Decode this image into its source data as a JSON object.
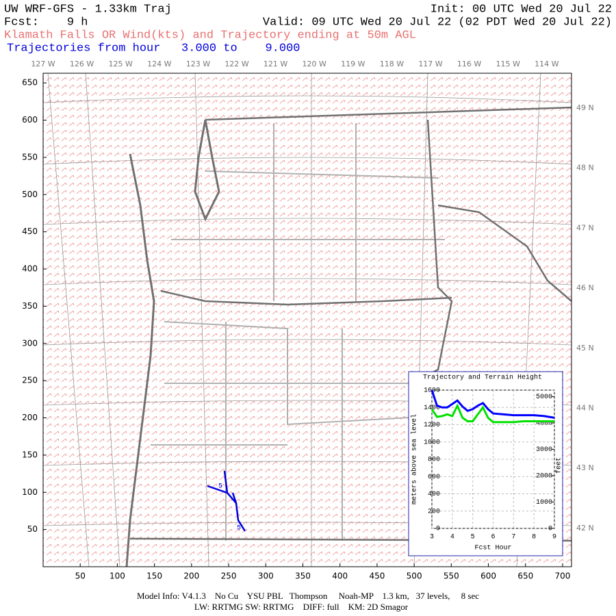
{
  "header": {
    "title": "UW WRF-GFS - 1.33km Traj",
    "init": "Init: 00 UTC Wed 20 Jul 22",
    "fcst": "Fcst:    9 h",
    "valid": "Valid: 09 UTC Wed 20 Jul 22 (02 PDT Wed 20 Jul 22)",
    "subtitle": "Klamath Falls OR Wind(kts) and Trajectory ending at 50m AGL",
    "range": "Trajectories from hour   3.000 to    9.000"
  },
  "map": {
    "xlim": [
      0,
      712
    ],
    "ylim": [
      0,
      663
    ],
    "xticks": [
      50,
      100,
      150,
      200,
      250,
      300,
      350,
      400,
      450,
      500,
      550,
      600,
      650,
      700
    ],
    "yticks": [
      50,
      100,
      150,
      200,
      250,
      300,
      350,
      400,
      450,
      500,
      550,
      600,
      650
    ],
    "lon_labels": [
      "127 W",
      "126 W",
      "125 W",
      "124 W",
      "123 W",
      "122 W",
      "121 W",
      "120 W",
      "119 W",
      "118 W",
      "117 W",
      "116 W",
      "115 W",
      "114 W"
    ],
    "lat_labels": [
      "49 N",
      "48 N",
      "47 N",
      "46 N",
      "45 N",
      "44 N",
      "43 N",
      "42 N"
    ],
    "trajectory_labels": [
      "5",
      "5"
    ]
  },
  "chart_data": {
    "type": "line",
    "title": "Trajectory and Terrain Height",
    "x_label": "Fcst Hour",
    "y_label": "meters above sea level",
    "y2_label": "feet",
    "x": [
      3,
      3.25,
      3.5,
      3.75,
      4,
      4.25,
      4.5,
      4.75,
      5,
      5.25,
      5.5,
      5.75,
      6,
      6.5,
      7,
      7.5,
      8,
      8.5,
      9
    ],
    "xlim": [
      3,
      9
    ],
    "xticks": [
      3,
      4,
      5,
      6,
      7,
      8,
      9
    ],
    "ylim": [
      0,
      1600
    ],
    "yticks": [
      0,
      200,
      400,
      600,
      800,
      1000,
      1200,
      1400,
      1600
    ],
    "y2lim": [
      0,
      5249
    ],
    "y2ticks": [
      0,
      1000,
      2000,
      3000,
      4000,
      5000
    ],
    "grid": true,
    "series": [
      {
        "name": "Trajectory",
        "color": "#0000ff",
        "values": [
          1600,
          1420,
          1400,
          1400,
          1440,
          1480,
          1410,
          1360,
          1380,
          1420,
          1450,
          1380,
          1330,
          1320,
          1310,
          1310,
          1310,
          1300,
          1280
        ]
      },
      {
        "name": "Terrain",
        "color": "#00e000",
        "values": [
          1380,
          1290,
          1300,
          1320,
          1300,
          1420,
          1280,
          1240,
          1240,
          1320,
          1400,
          1280,
          1230,
          1230,
          1230,
          1240,
          1240,
          1240,
          1240
        ]
      }
    ]
  },
  "footer": {
    "line1": "Model Info: V4.1.3    No Cu    YSU PBL   Thompson     Noah-MP    1.3 km,   37 levels,     8 sec",
    "line2": "LW: RRTMG SW: RRTMG    DIFF: full    KM: 2D Smagor"
  }
}
